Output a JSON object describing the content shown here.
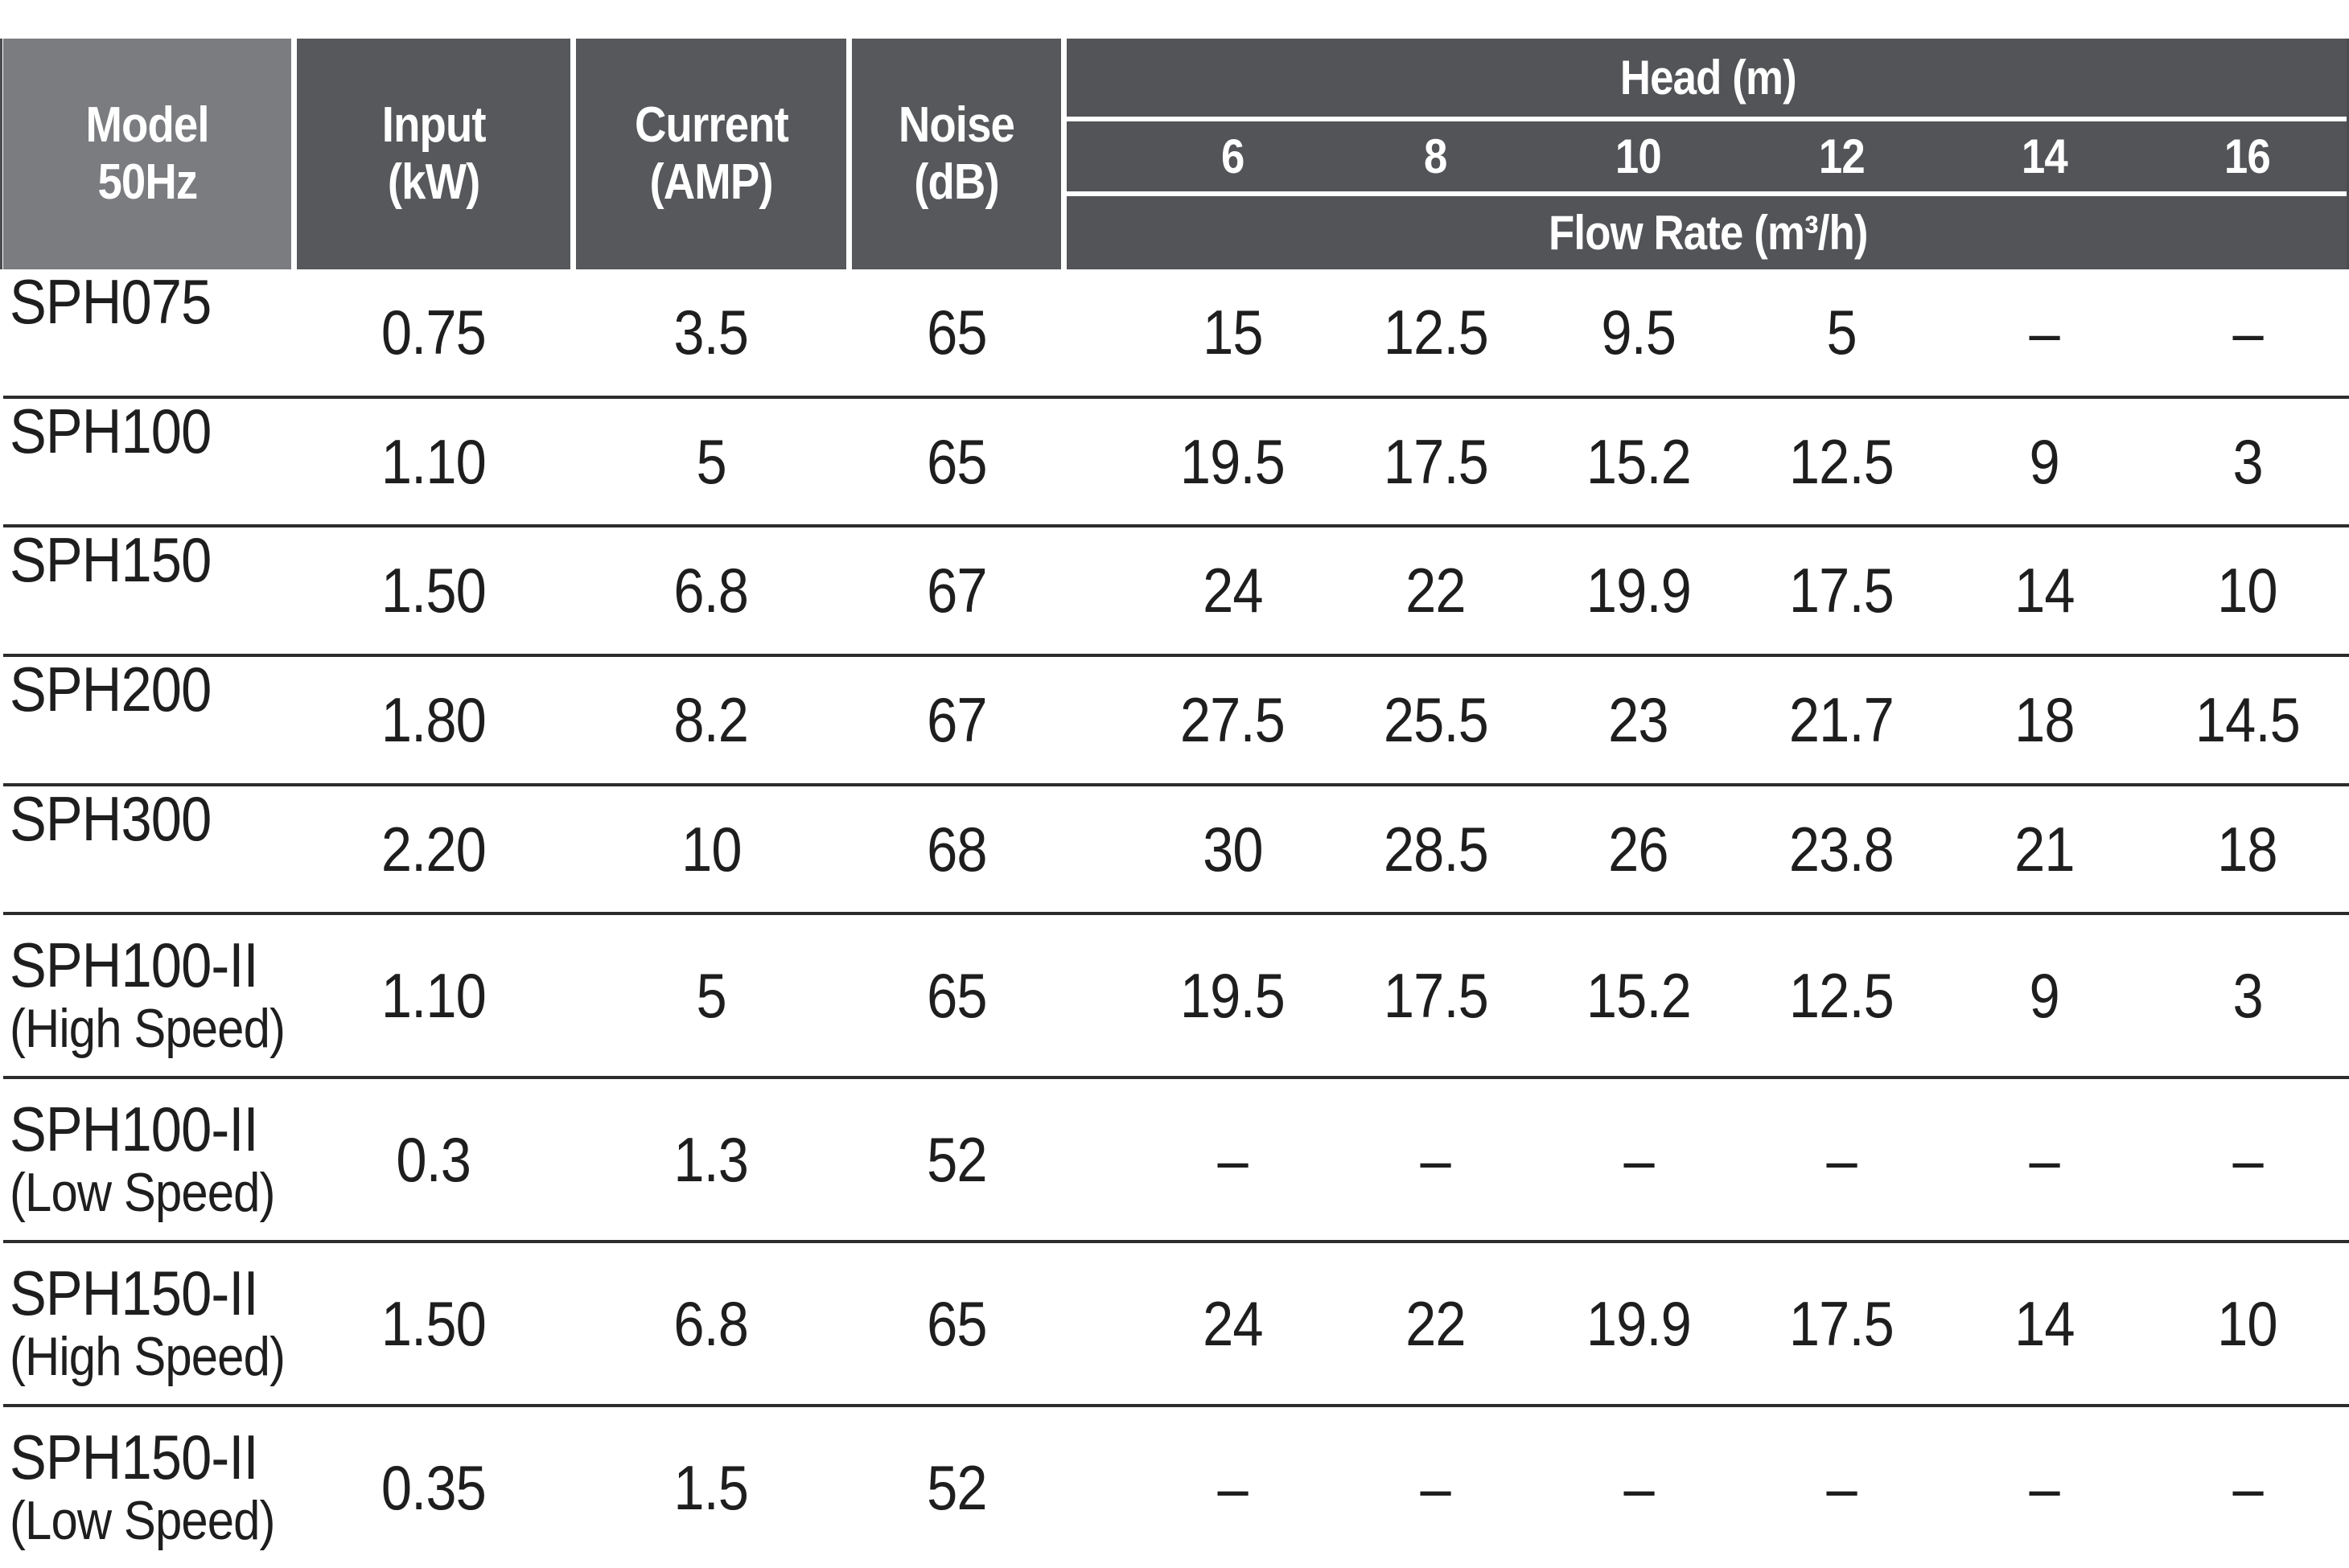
{
  "table": {
    "header": {
      "model": [
        "Model",
        "50Hz"
      ],
      "input": [
        "Input",
        "(kW)"
      ],
      "current": [
        "Current",
        "(AMP)"
      ],
      "noise": [
        "Noise",
        "(dB)"
      ],
      "head_group": "Head (m)",
      "head_values": [
        "6",
        "8",
        "10",
        "12",
        "14",
        "16"
      ],
      "flow_label": "Flow Rate (m³/h)"
    },
    "colors": {
      "header_bg": "#56585b",
      "model_header_bg": "#7b7c7f",
      "header_text": "#ffffff",
      "body_text": "#1e1e1e",
      "row_divider": "#2c2c2c"
    },
    "rows": [
      {
        "model": "SPH075",
        "speed": "",
        "input": "0.75",
        "current": "3.5",
        "noise": "65",
        "flow": [
          "15",
          "12.5",
          "9.5",
          "5",
          "–",
          "–"
        ]
      },
      {
        "model": "SPH100",
        "speed": "",
        "input": "1.10",
        "current": "5",
        "noise": "65",
        "flow": [
          "19.5",
          "17.5",
          "15.2",
          "12.5",
          "9",
          "3"
        ]
      },
      {
        "model": "SPH150",
        "speed": "",
        "input": "1.50",
        "current": "6.8",
        "noise": "67",
        "flow": [
          "24",
          "22",
          "19.9",
          "17.5",
          "14",
          "10"
        ]
      },
      {
        "model": "SPH200",
        "speed": "",
        "input": "1.80",
        "current": "8.2",
        "noise": "67",
        "flow": [
          "27.5",
          "25.5",
          "23",
          "21.7",
          "18",
          "14.5"
        ]
      },
      {
        "model": "SPH300",
        "speed": "",
        "input": "2.20",
        "current": "10",
        "noise": "68",
        "flow": [
          "30",
          "28.5",
          "26",
          "23.8",
          "21",
          "18"
        ]
      },
      {
        "model": "SPH100-II",
        "speed": "(High Speed)",
        "input": "1.10",
        "current": "5",
        "noise": "65",
        "flow": [
          "19.5",
          "17.5",
          "15.2",
          "12.5",
          "9",
          "3"
        ]
      },
      {
        "model": "SPH100-II",
        "speed": "(Low Speed)",
        "input": "0.3",
        "current": "1.3",
        "noise": "52",
        "flow": [
          "–",
          "–",
          "–",
          "–",
          "–",
          "–"
        ]
      },
      {
        "model": "SPH150-II",
        "speed": "(High Speed)",
        "input": "1.50",
        "current": "6.8",
        "noise": "65",
        "flow": [
          "24",
          "22",
          "19.9",
          "17.5",
          "14",
          "10"
        ]
      },
      {
        "model": "SPH150-II",
        "speed": "(Low Speed)",
        "input": "0.35",
        "current": "1.5",
        "noise": "52",
        "flow": [
          "–",
          "–",
          "–",
          "–",
          "–",
          "–"
        ]
      }
    ]
  }
}
